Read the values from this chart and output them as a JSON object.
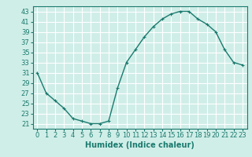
{
  "x": [
    0,
    1,
    2,
    3,
    4,
    5,
    6,
    7,
    8,
    9,
    10,
    11,
    12,
    13,
    14,
    15,
    16,
    17,
    18,
    19,
    20,
    21,
    22,
    23
  ],
  "y": [
    31,
    27,
    25.5,
    24,
    22,
    21.5,
    21,
    21,
    21.5,
    28,
    33,
    35.5,
    38,
    40,
    41.5,
    42.5,
    43,
    43,
    41.5,
    40.5,
    39,
    35.5,
    33,
    32.5
  ],
  "line_color": "#1a7a6e",
  "marker": "+",
  "marker_size": 3,
  "bg_color": "#d0eee8",
  "grid_color": "#ffffff",
  "xlabel": "Humidex (Indice chaleur)",
  "xlabel_fontsize": 7,
  "tick_fontsize": 6,
  "ylim": [
    20,
    44
  ],
  "yticks": [
    21,
    23,
    25,
    27,
    29,
    31,
    33,
    35,
    37,
    39,
    41,
    43
  ],
  "xticks": [
    0,
    1,
    2,
    3,
    4,
    5,
    6,
    7,
    8,
    9,
    10,
    11,
    12,
    13,
    14,
    15,
    16,
    17,
    18,
    19,
    20,
    21,
    22,
    23
  ],
  "line_width": 1.0,
  "xlim": [
    -0.5,
    23.5
  ]
}
